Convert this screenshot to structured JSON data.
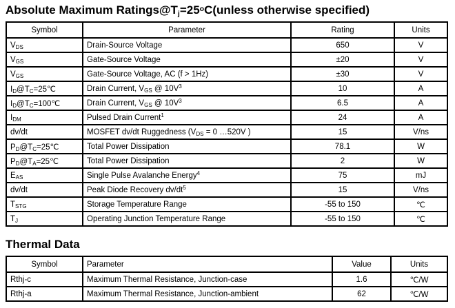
{
  "abs_max": {
    "title": "Absolute Maximum Ratings@T~j~=25^o^C(unless otherwise specified)",
    "headers": [
      "Symbol",
      "Parameter",
      "Rating",
      "Units"
    ],
    "rows": [
      {
        "symbol": "V~DS~",
        "parameter": "Drain-Source Voltage",
        "rating": "650",
        "units": "V"
      },
      {
        "symbol": "V~GS~",
        "parameter": "Gate-Source Voltage",
        "rating": "±20",
        "units": "V"
      },
      {
        "symbol": "V~GS~",
        "parameter": "Gate-Source Voltage, AC (f > 1Hz)",
        "rating": "±30",
        "units": "V"
      },
      {
        "symbol": "I~D~@T~C~=25℃",
        "parameter": "Drain Current, V~GS~ @ 10V^3^",
        "rating": "10",
        "units": "A"
      },
      {
        "symbol": "I~D~@T~C~=100℃",
        "parameter": "Drain Current, V~GS~ @ 10V^3^",
        "rating": "6.5",
        "units": "A"
      },
      {
        "symbol": "I~DM~",
        "parameter": "Pulsed Drain Current^1^",
        "rating": "24",
        "units": "A"
      },
      {
        "symbol": "dv/dt",
        "parameter": "MOSFET dv/dt Ruggedness (V~DS~ = 0 …520V )",
        "rating": "15",
        "units": "V/ns"
      },
      {
        "symbol": "P~D~@T~C~=25℃",
        "parameter": "Total Power Dissipation",
        "rating": "78.1",
        "units": "W"
      },
      {
        "symbol": "P~D~@T~A~=25℃",
        "parameter": "Total Power Dissipation",
        "rating": "2",
        "units": "W"
      },
      {
        "symbol": "E~AS~",
        "parameter": "Single Pulse Avalanche Energy^4^",
        "rating": "75",
        "units": "mJ"
      },
      {
        "symbol": "dv/dt",
        "parameter": "Peak Diode Recovery dv/dt^5^",
        "rating": "15",
        "units": "V/ns"
      },
      {
        "symbol": "T~STG~",
        "parameter": "Storage Temperature Range",
        "rating": "-55 to 150",
        "units": "℃"
      },
      {
        "symbol": "T~J~",
        "parameter": "Operating Junction Temperature Range",
        "rating": "-55 to 150",
        "units": "℃"
      }
    ]
  },
  "thermal": {
    "title": "Thermal Data",
    "headers": [
      "Symbol",
      "Parameter",
      "Value",
      "Units"
    ],
    "rows": [
      {
        "symbol": "Rthj-c",
        "parameter": "Maximum Thermal Resistance, Junction-case",
        "value": "1.6",
        "units": "℃/W"
      },
      {
        "symbol": "Rthj-a",
        "parameter": "Maximum Thermal Resistance, Junction-ambient",
        "value": "62",
        "units": "℃/W"
      }
    ]
  }
}
